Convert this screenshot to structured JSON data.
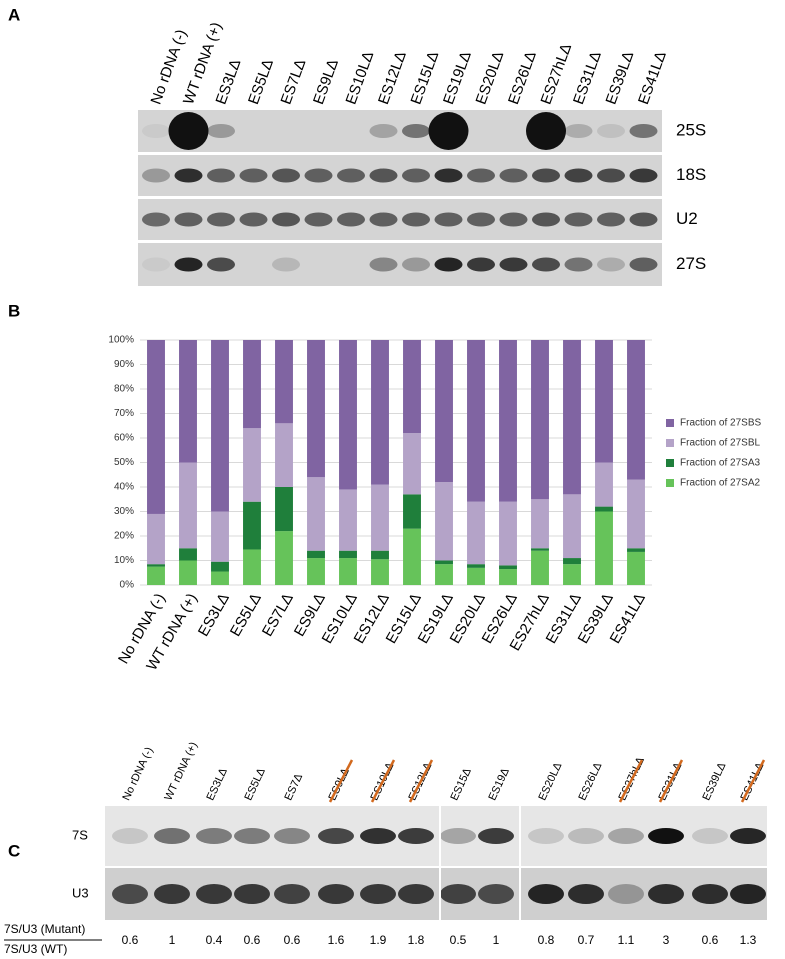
{
  "panel_a": {
    "label": "A",
    "lanes": [
      "No rDNA (-)",
      "WT rDNA (+)",
      "ES3LΔ",
      "ES5LΔ",
      "ES7LΔ",
      "ES9LΔ",
      "ES10LΔ",
      "ES12LΔ",
      "ES15LΔ",
      "ES19LΔ",
      "ES20LΔ",
      "ES26LΔ",
      "ES27hLΔ",
      "ES31LΔ",
      "ES39LΔ",
      "ES41LΔ"
    ],
    "rows": [
      "25S",
      "18S",
      "U2",
      "27S"
    ]
  },
  "chart_data": {
    "type": "bar",
    "stacked": true,
    "panel_label": "B",
    "categories": [
      "No rDNA (-)",
      "WT rDNA (+)",
      "ES3LΔ",
      "ES5LΔ",
      "ES7LΔ",
      "ES9LΔ",
      "ES10LΔ",
      "ES12LΔ",
      "ES15LΔ",
      "ES19LΔ",
      "ES20LΔ",
      "ES26LΔ",
      "ES27hLΔ",
      "ES31LΔ",
      "ES39LΔ",
      "ES41LΔ"
    ],
    "series": [
      {
        "name": "Fraction of 27SA2",
        "color": "#66c35a",
        "values": [
          7.5,
          10,
          5.5,
          14.5,
          22,
          11,
          11,
          10.5,
          23,
          8.5,
          7,
          6.5,
          14,
          8.5,
          30,
          13.5
        ]
      },
      {
        "name": "Fraction of 27SA3",
        "color": "#1f7f3b",
        "values": [
          1,
          5,
          4,
          19.5,
          18,
          3,
          3,
          3.5,
          14,
          1.5,
          1.5,
          1.5,
          1,
          2.5,
          2,
          1.5
        ]
      },
      {
        "name": "Fraction of 27SBL",
        "color": "#b4a3c8",
        "values": [
          20.5,
          35,
          20.5,
          30,
          26,
          30,
          25,
          27,
          25,
          32,
          25.5,
          26,
          20,
          26,
          18,
          28
        ]
      },
      {
        "name": "Fraction of 27SBS",
        "color": "#8064a2",
        "values": [
          71,
          50,
          70,
          36,
          34,
          56,
          61,
          59,
          38,
          58,
          66,
          66,
          65,
          63,
          50,
          57
        ]
      }
    ],
    "ylim": [
      0,
      100
    ],
    "yticks": [
      {
        "value": 0,
        "label": "0%"
      },
      {
        "value": 10,
        "label": "10%"
      },
      {
        "value": 20,
        "label": "20%"
      },
      {
        "value": 30,
        "label": "30%"
      },
      {
        "value": 40,
        "label": "40%"
      },
      {
        "value": 50,
        "label": "50%"
      },
      {
        "value": 60,
        "label": "60%"
      },
      {
        "value": 70,
        "label": "70%"
      },
      {
        "value": 80,
        "label": "80%"
      },
      {
        "value": 90,
        "label": "90%"
      },
      {
        "value": 100,
        "label": "100%"
      }
    ],
    "grid": true,
    "legend": "right"
  },
  "panel_c": {
    "label": "C",
    "lanes": [
      "No rDNA (-)",
      "WT rDNA (+)",
      "ES3LΔ",
      "ES5LΔ",
      "ES7Δ",
      "ES9LΔ",
      "ES10LΔ",
      "ES12LΔ",
      "ES15Δ",
      "ES19Δ",
      "ES20LΔ",
      "ES26LΔ",
      "ES27hLΔ",
      "ES31LΔ",
      "ES39LΔ",
      "ES41LΔ"
    ],
    "rows": [
      "7S",
      "U3"
    ],
    "ratio_numerator": "7S/U3 (Mutant)",
    "ratio_denominator": "7S/U3 (WT)",
    "ratios": [
      0.6,
      1,
      0.4,
      0.6,
      0.6,
      1.6,
      1.9,
      1.8,
      0.5,
      1,
      0.8,
      0.7,
      1.1,
      3,
      0.6,
      1.3
    ]
  }
}
